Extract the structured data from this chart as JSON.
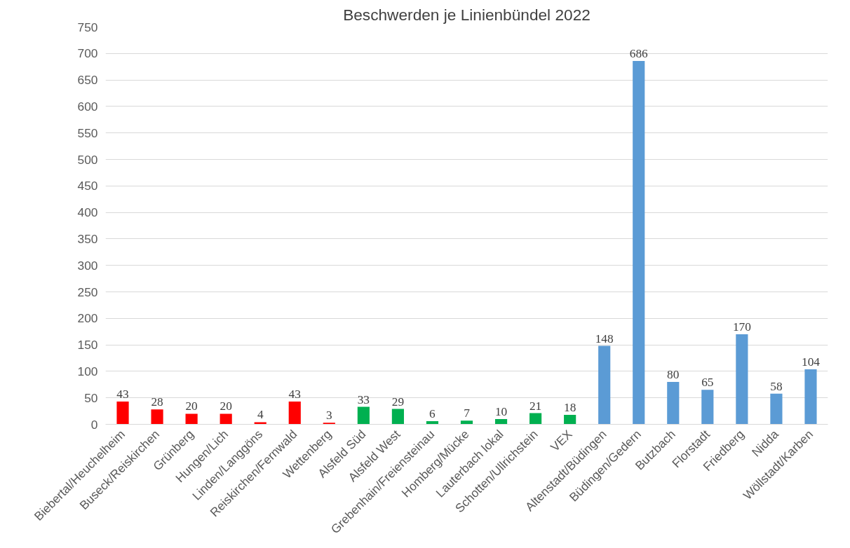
{
  "chart_data": {
    "type": "bar",
    "title": "Beschwerden je Linienbündel 2022",
    "categories": [
      "Biebertal/Heuchelheim",
      "Buseck/Reiskirchen",
      "Grünberg",
      "Hungen/Lich",
      "Linden/Langgöns",
      "Reiskirchen/Fernwald",
      "Wettenberg",
      "Alsfeld Süd",
      "Alsfeld West",
      "Grebenhain/Freiensteinau",
      "Homberg/Mücke",
      "Lauterbach lokal",
      "Schotten/Ullrichstein",
      "VEX",
      "Altenstadt/Büdingen",
      "Büdingen/Gedern",
      "Butzbach",
      "Florstadt",
      "Friedberg",
      "Nidda",
      "Wöllstadt/Karben"
    ],
    "values": [
      43,
      28,
      20,
      20,
      4,
      43,
      3,
      33,
      29,
      6,
      7,
      10,
      21,
      18,
      148,
      686,
      80,
      65,
      170,
      58,
      104
    ],
    "colors": [
      "#ff0000",
      "#ff0000",
      "#ff0000",
      "#ff0000",
      "#ff0000",
      "#ff0000",
      "#ff0000",
      "#00b050",
      "#00b050",
      "#00b050",
      "#00b050",
      "#00b050",
      "#00b050",
      "#00b050",
      "#5b9bd5",
      "#5b9bd5",
      "#5b9bd5",
      "#5b9bd5",
      "#5b9bd5",
      "#5b9bd5",
      "#5b9bd5"
    ],
    "ylim": [
      0,
      750
    ],
    "yticks": [
      0,
      50,
      100,
      150,
      200,
      250,
      300,
      350,
      400,
      450,
      500,
      550,
      600,
      650,
      700,
      750
    ],
    "grid": "y",
    "data_labels": true
  }
}
